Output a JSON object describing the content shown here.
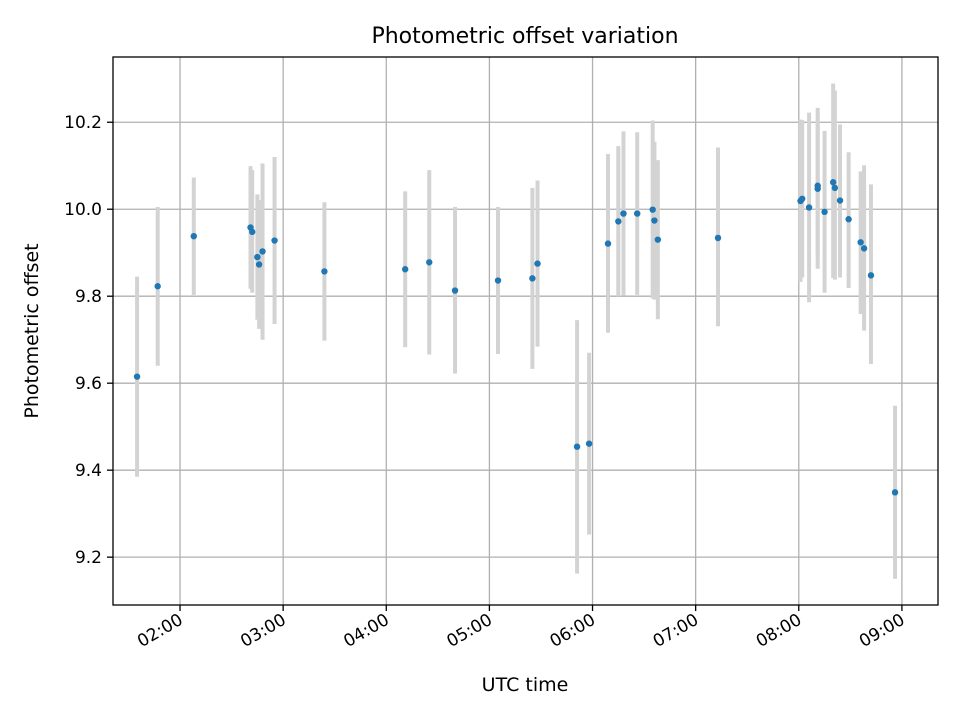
{
  "chart_data": {
    "type": "scatter",
    "title": "Photometric offset variation",
    "xlabel": "UTC time",
    "ylabel": "Photometric offset",
    "x_ticks": [
      "02:00",
      "03:00",
      "04:00",
      "05:00",
      "06:00",
      "07:00",
      "08:00",
      "09:00"
    ],
    "y_ticks": [
      "9.2",
      "9.4",
      "9.6",
      "9.8",
      "10.0",
      "10.2"
    ],
    "xlim": [
      "01:21",
      "09:21"
    ],
    "ylim": [
      9.09,
      10.35
    ],
    "grid": true,
    "colors": {
      "point": "#1f77b4",
      "errorbar": "#d3d3d3",
      "grid": "#b0b0b0"
    },
    "points": [
      {
        "x": "01:35",
        "y": 9.615,
        "lo": 9.385,
        "hi": 9.845
      },
      {
        "x": "01:47",
        "y": 9.823,
        "lo": 9.64,
        "hi": 10.005
      },
      {
        "x": "02:08",
        "y": 9.938,
        "lo": 9.803,
        "hi": 10.073
      },
      {
        "x": "02:41",
        "y": 9.958,
        "lo": 9.817,
        "hi": 10.099
      },
      {
        "x": "02:42",
        "y": 9.948,
        "lo": 9.808,
        "hi": 10.09
      },
      {
        "x": "02:45",
        "y": 9.89,
        "lo": 9.746,
        "hi": 10.034
      },
      {
        "x": "02:46",
        "y": 9.873,
        "lo": 9.725,
        "hi": 10.021
      },
      {
        "x": "02:48",
        "y": 9.903,
        "lo": 9.7,
        "hi": 10.105
      },
      {
        "x": "02:55",
        "y": 9.928,
        "lo": 9.736,
        "hi": 10.12
      },
      {
        "x": "03:24",
        "y": 9.857,
        "lo": 9.698,
        "hi": 10.016
      },
      {
        "x": "04:11",
        "y": 9.862,
        "lo": 9.683,
        "hi": 10.041
      },
      {
        "x": "04:25",
        "y": 9.878,
        "lo": 9.666,
        "hi": 10.09
      },
      {
        "x": "04:40",
        "y": 9.813,
        "lo": 9.622,
        "hi": 10.005
      },
      {
        "x": "05:05",
        "y": 9.836,
        "lo": 9.667,
        "hi": 10.005
      },
      {
        "x": "05:25",
        "y": 9.841,
        "lo": 9.633,
        "hi": 10.049
      },
      {
        "x": "05:28",
        "y": 9.875,
        "lo": 9.684,
        "hi": 10.066
      },
      {
        "x": "05:51",
        "y": 9.454,
        "lo": 9.162,
        "hi": 9.745
      },
      {
        "x": "05:58",
        "y": 9.461,
        "lo": 9.252,
        "hi": 9.67
      },
      {
        "x": "06:09",
        "y": 9.921,
        "lo": 9.716,
        "hi": 10.127
      },
      {
        "x": "06:15",
        "y": 9.972,
        "lo": 9.8,
        "hi": 10.145
      },
      {
        "x": "06:18",
        "y": 9.99,
        "lo": 9.801,
        "hi": 10.179
      },
      {
        "x": "06:26",
        "y": 9.99,
        "lo": 9.803,
        "hi": 10.177
      },
      {
        "x": "06:35",
        "y": 9.999,
        "lo": 9.795,
        "hi": 10.204
      },
      {
        "x": "06:36",
        "y": 9.974,
        "lo": 9.792,
        "hi": 10.155
      },
      {
        "x": "06:38",
        "y": 9.93,
        "lo": 9.747,
        "hi": 10.113
      },
      {
        "x": "07:13",
        "y": 9.934,
        "lo": 9.731,
        "hi": 10.142
      },
      {
        "x": "08:01",
        "y": 10.019,
        "lo": 9.833,
        "hi": 10.206
      },
      {
        "x": "08:02",
        "y": 10.024,
        "lo": 9.843,
        "hi": 10.205
      },
      {
        "x": "08:06",
        "y": 10.004,
        "lo": 9.786,
        "hi": 10.222
      },
      {
        "x": "08:11",
        "y": 10.054,
        "lo": 9.863,
        "hi": 10.233
      },
      {
        "x": "08:11",
        "y": 10.047,
        "lo": 9.897,
        "hi": 10.197
      },
      {
        "x": "08:15",
        "y": 9.994,
        "lo": 9.808,
        "hi": 10.18
      },
      {
        "x": "08:20",
        "y": 10.062,
        "lo": 9.842,
        "hi": 10.289
      },
      {
        "x": "08:21",
        "y": 10.049,
        "lo": 9.838,
        "hi": 10.273
      },
      {
        "x": "08:24",
        "y": 10.02,
        "lo": 9.843,
        "hi": 10.195
      },
      {
        "x": "08:29",
        "y": 9.977,
        "lo": 9.819,
        "hi": 10.131
      },
      {
        "x": "08:36",
        "y": 9.924,
        "lo": 9.759,
        "hi": 10.087
      },
      {
        "x": "08:38",
        "y": 9.91,
        "lo": 9.721,
        "hi": 10.101
      },
      {
        "x": "08:42",
        "y": 9.848,
        "lo": 9.644,
        "hi": 10.057
      },
      {
        "x": "08:56",
        "y": 9.349,
        "lo": 9.15,
        "hi": 9.548
      }
    ]
  }
}
